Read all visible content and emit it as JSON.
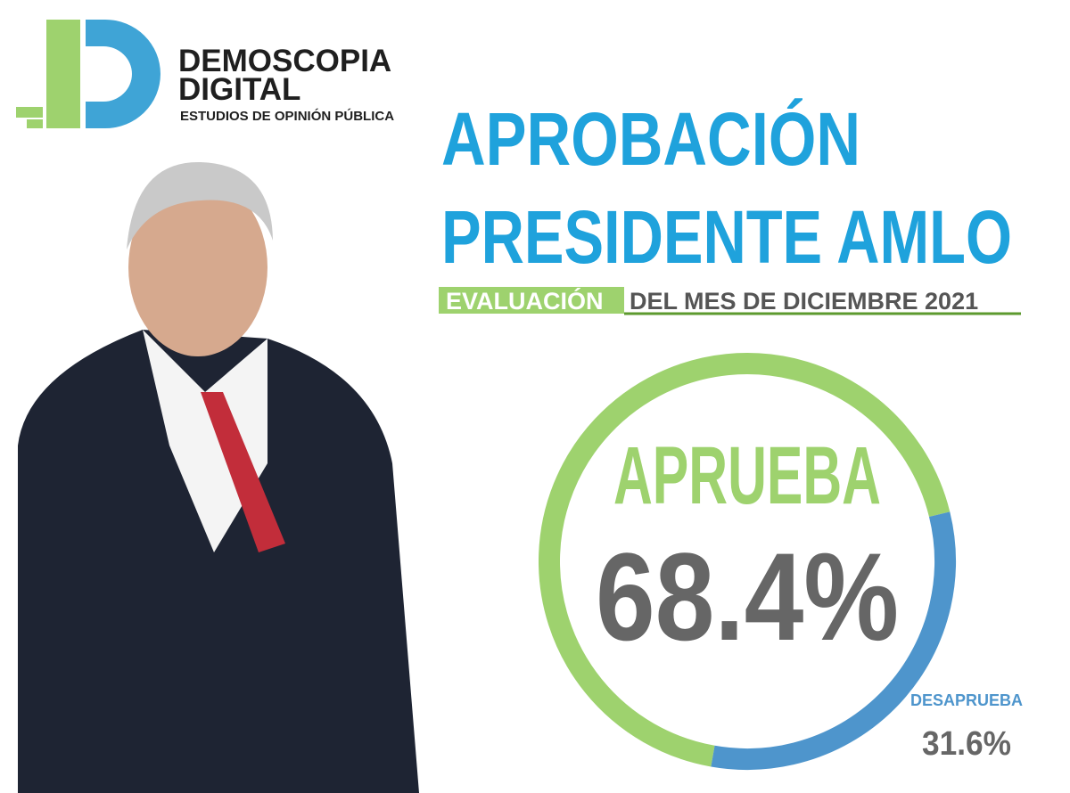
{
  "brand": {
    "name": [
      "DEMOSCOPIA",
      "DIGITAL"
    ],
    "tagline": "ESTUDIOS DE OPINIÓN PÚBLICA"
  },
  "chart_data": {
    "type": "donut",
    "title": [
      "APROBACIÓN",
      "PRESIDENTE AMLO"
    ],
    "subtitle_highlight": "EVALUACIÓN",
    "subtitle": "DEL MES DE DICIEMBRE 2021",
    "categories": [
      "APRUEBA",
      "DESAPRUEBA"
    ],
    "values": [
      68.4,
      31.6
    ],
    "value_labels": [
      "68.4%",
      "31.6%"
    ],
    "colors": [
      "#9ed26e",
      "#4e95cc"
    ]
  }
}
